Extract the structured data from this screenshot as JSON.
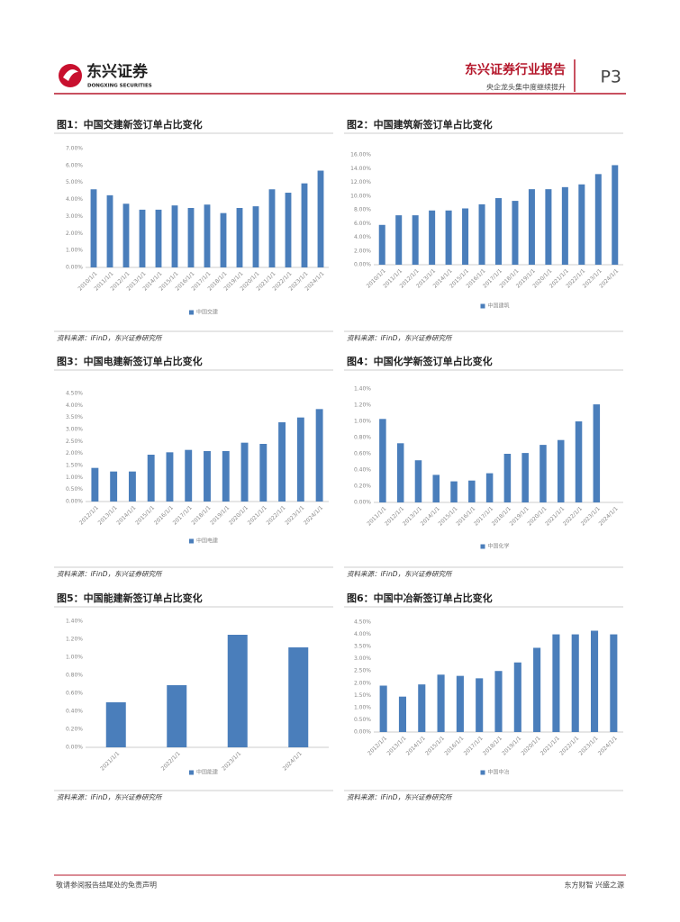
{
  "header": {
    "logo_cn": "东兴证券",
    "logo_en": "DONGXING SECURITIES",
    "report": "东兴证券行业报告",
    "subtitle": "央企龙头集中度继续提升",
    "page": "P3"
  },
  "chart_data": [
    {
      "type": "bar",
      "title": "图1：中国交建新签订单占比变化",
      "categories": [
        "2010/1/1",
        "2011/1/1",
        "2012/1/1",
        "2013/1/1",
        "2014/1/1",
        "2015/1/1",
        "2016/1/1",
        "2017/1/1",
        "2018/1/1",
        "2019/1/1",
        "2020/1/1",
        "2021/1/1",
        "2022/1/1",
        "2023/1/1",
        "2024/1/1"
      ],
      "series": [
        {
          "name": "中国交建",
          "color": "#4a7ebb",
          "values": [
            4.6,
            4.25,
            3.75,
            3.4,
            3.4,
            3.65,
            3.5,
            3.7,
            3.2,
            3.5,
            3.6,
            4.6,
            4.4,
            4.95,
            5.7
          ]
        }
      ],
      "ylim": [
        0,
        7
      ],
      "yticks": [
        {
          "value": 0,
          "label": "0.00%"
        },
        {
          "value": 1,
          "label": "1.00%"
        },
        {
          "value": 2,
          "label": "2.00%"
        },
        {
          "value": 3,
          "label": "3.00%"
        },
        {
          "value": 4,
          "label": "4.00%"
        },
        {
          "value": 5,
          "label": "5.00%"
        },
        {
          "value": 6,
          "label": "6.00%"
        },
        {
          "value": 7,
          "label": "7.00%"
        }
      ],
      "source": "资料来源：iFinD，东兴证券研究所"
    },
    {
      "type": "bar",
      "title": "图2：中国建筑新签订单占比变化",
      "categories": [
        "2010/1/1",
        "2011/1/1",
        "2012/1/1",
        "2013/1/1",
        "2014/1/1",
        "2015/1/1",
        "2016/1/1",
        "2017/1/1",
        "2018/1/1",
        "2019/1/1",
        "2020/1/1",
        "2021/1/1",
        "2022/1/1",
        "2023/1/1",
        "2024/1/1"
      ],
      "series": [
        {
          "name": "中国建筑",
          "color": "#4a7ebb",
          "values": [
            5.8,
            7.2,
            7.2,
            7.9,
            7.9,
            8.2,
            8.8,
            9.7,
            9.3,
            11.0,
            11.0,
            11.3,
            11.7,
            13.2,
            14.5
          ]
        }
      ],
      "ylim": [
        0,
        16
      ],
      "yticks": [
        {
          "value": 0,
          "label": "0.00%"
        },
        {
          "value": 2,
          "label": "2.00%"
        },
        {
          "value": 4,
          "label": "4.00%"
        },
        {
          "value": 6,
          "label": "6.00%"
        },
        {
          "value": 8,
          "label": "8.00%"
        },
        {
          "value": 10,
          "label": "10.00%"
        },
        {
          "value": 12,
          "label": "12.00%"
        },
        {
          "value": 14,
          "label": "14.00%"
        },
        {
          "value": 16,
          "label": "16.00%"
        }
      ],
      "source": "资料来源：iFinD，东兴证券研究所"
    },
    {
      "type": "bar",
      "title": "图3：中国电建新签订单占比变化",
      "categories": [
        "2012/1/1",
        "2013/1/1",
        "2014/1/1",
        "2015/1/1",
        "2016/1/1",
        "2017/1/1",
        "2018/1/1",
        "2019/1/1",
        "2020/1/1",
        "2021/1/1",
        "2022/1/1",
        "2023/1/1",
        "2024/1/1"
      ],
      "series": [
        {
          "name": "中国电建",
          "color": "#4a7ebb",
          "values": [
            1.4,
            1.25,
            1.25,
            1.95,
            2.05,
            2.15,
            2.1,
            2.1,
            2.45,
            2.4,
            3.3,
            3.5,
            3.85
          ]
        }
      ],
      "ylim": [
        0,
        4.5
      ],
      "yticks": [
        {
          "value": 0,
          "label": "0.00%"
        },
        {
          "value": 0.5,
          "label": "0.50%"
        },
        {
          "value": 1,
          "label": "1.00%"
        },
        {
          "value": 1.5,
          "label": "1.50%"
        },
        {
          "value": 2,
          "label": "2.00%"
        },
        {
          "value": 2.5,
          "label": "2.50%"
        },
        {
          "value": 3,
          "label": "3.00%"
        },
        {
          "value": 3.5,
          "label": "3.50%"
        },
        {
          "value": 4,
          "label": "4.00%"
        },
        {
          "value": 4.5,
          "label": "4.50%"
        }
      ],
      "source": "资料来源：iFinD，东兴证券研究所"
    },
    {
      "type": "bar",
      "title": "图4：中国化学新签订单占比变化",
      "categories": [
        "2011/1/1",
        "2012/1/1",
        "2013/1/1",
        "2014/1/1",
        "2015/1/1",
        "2016/1/1",
        "2017/1/1",
        "2018/1/1",
        "2019/1/1",
        "2020/1/1",
        "2021/1/1",
        "2022/1/1",
        "2023/1/1",
        "2024/1/1"
      ],
      "series": [
        {
          "name": "中国化学",
          "color": "#4a7ebb",
          "values": [
            1.03,
            0.73,
            0.52,
            0.34,
            0.26,
            0.27,
            0.36,
            0.6,
            0.61,
            0.71,
            0.77,
            1.0,
            1.21,
            null
          ]
        }
      ],
      "ylim": [
        0,
        1.4
      ],
      "yticks": [
        {
          "value": 0,
          "label": "0.00%"
        },
        {
          "value": 0.2,
          "label": "0.20%"
        },
        {
          "value": 0.4,
          "label": "0.40%"
        },
        {
          "value": 0.6,
          "label": "0.60%"
        },
        {
          "value": 0.8,
          "label": "0.80%"
        },
        {
          "value": 1.0,
          "label": "1.00%"
        },
        {
          "value": 1.2,
          "label": "1.20%"
        },
        {
          "value": 1.4,
          "label": "1.40%"
        }
      ],
      "source": "资料来源：iFinD，东兴证券研究所"
    },
    {
      "type": "bar",
      "title": "图5：中国能建新签订单占比变化",
      "categories": [
        "2021/1/1",
        "2022/1/1",
        "2023/1/1",
        "2024/1/1"
      ],
      "series": [
        {
          "name": "中国能建",
          "color": "#4a7ebb",
          "values": [
            0.5,
            0.69,
            1.25,
            1.11
          ]
        }
      ],
      "ylim": [
        0,
        1.4
      ],
      "yticks": [
        {
          "value": 0,
          "label": "0.00%"
        },
        {
          "value": 0.2,
          "label": "0.20%"
        },
        {
          "value": 0.4,
          "label": "0.40%"
        },
        {
          "value": 0.6,
          "label": "0.60%"
        },
        {
          "value": 0.8,
          "label": "0.80%"
        },
        {
          "value": 1.0,
          "label": "1.00%"
        },
        {
          "value": 1.2,
          "label": "1.20%"
        },
        {
          "value": 1.4,
          "label": "1.40%"
        }
      ],
      "source": "资料来源：iFinD，东兴证券研究所"
    },
    {
      "type": "bar",
      "title": "图6：中国中冶新签订单占比变化",
      "categories": [
        "2012/1/1",
        "2013/1/1",
        "2014/1/1",
        "2015/1/1",
        "2016/1/1",
        "2017/1/1",
        "2018/1/1",
        "2019/1/1",
        "2020/1/1",
        "2021/1/1",
        "2022/1/1",
        "2023/1/1",
        "2024/1/1"
      ],
      "series": [
        {
          "name": "中国中冶",
          "color": "#4a7ebb",
          "values": [
            1.9,
            1.45,
            1.95,
            2.35,
            2.3,
            2.2,
            2.5,
            2.85,
            3.45,
            4.0,
            4.0,
            4.15,
            4.0
          ]
        }
      ],
      "ylim": [
        0,
        4.5
      ],
      "yticks": [
        {
          "value": 0,
          "label": "0.00%"
        },
        {
          "value": 0.5,
          "label": "0.50%"
        },
        {
          "value": 1,
          "label": "1.00%"
        },
        {
          "value": 1.5,
          "label": "1.50%"
        },
        {
          "value": 2,
          "label": "2.00%"
        },
        {
          "value": 2.5,
          "label": "2.50%"
        },
        {
          "value": 3,
          "label": "3.00%"
        },
        {
          "value": 3.5,
          "label": "3.50%"
        },
        {
          "value": 4,
          "label": "4.00%"
        },
        {
          "value": 4.5,
          "label": "4.50%"
        }
      ],
      "source": "资料来源：iFinD，东兴证券研究所"
    }
  ],
  "footer": {
    "left": "敬请参阅报告结尾处的免责声明",
    "right": "东方财智 兴盛之源"
  }
}
